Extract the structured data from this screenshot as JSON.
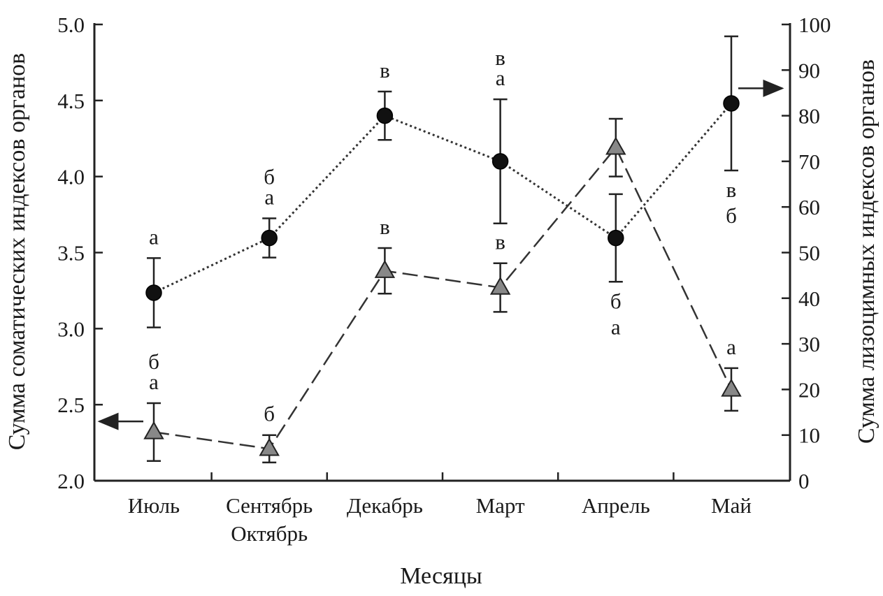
{
  "chart_data": {
    "type": "line",
    "xlabel": "Месяцы",
    "ylabel_left": "Сумма соматических индексов органов",
    "ylabel_right": "Сумма лизоцимных индексов органов",
    "categories": [
      [
        "Июль"
      ],
      [
        "Сентябрь",
        "Октябрь"
      ],
      [
        "Декабрь"
      ],
      [
        "Март"
      ],
      [
        "Апрель"
      ],
      [
        "Май"
      ]
    ],
    "ylim_left": [
      2.0,
      5.0
    ],
    "yticks_left": [
      2.0,
      2.5,
      3.0,
      3.5,
      4.0,
      4.5,
      5.0
    ],
    "ytick_labels_left": [
      "2.0",
      "2.5",
      "3.0",
      "3.5",
      "4.0",
      "4.5",
      "5.0"
    ],
    "ylim_right": [
      0,
      100
    ],
    "yticks_right": [
      0,
      10,
      20,
      30,
      40,
      50,
      60,
      70,
      80,
      90,
      100
    ],
    "ytick_labels_right": [
      "0",
      "10",
      "20",
      "30",
      "40",
      "50",
      "60",
      "70",
      "80",
      "90",
      "100"
    ],
    "grid": false,
    "series": [
      {
        "axis": "left",
        "marker": "triangle",
        "line_style": "dashed",
        "color": "#888888",
        "values": [
          2.32,
          2.21,
          3.38,
          3.27,
          4.19,
          2.6
        ],
        "errors": [
          0.19,
          0.09,
          0.15,
          0.16,
          0.19,
          0.14
        ],
        "annotations": [
          {
            "lines": [
              "б",
              "а"
            ],
            "position": "above"
          },
          {
            "lines": [
              "б"
            ],
            "position": "above"
          },
          {
            "lines": [
              "в"
            ],
            "position": "above"
          },
          {
            "lines": [
              "в"
            ],
            "position": "above"
          },
          {
            "lines": [],
            "position": "above"
          },
          {
            "lines": [
              "а"
            ],
            "position": "above"
          }
        ],
        "arrow": "left"
      },
      {
        "axis": "right",
        "marker": "circle",
        "line_style": "dotted",
        "color": "#111111",
        "values": [
          41.2,
          53.2,
          80.0,
          70.0,
          53.2,
          82.7
        ],
        "errors": [
          7.6,
          4.3,
          5.3,
          13.6,
          9.6,
          14.7
        ],
        "annotations": [
          {
            "lines": [
              "а"
            ],
            "position": "above"
          },
          {
            "lines": [
              "б",
              "а"
            ],
            "position": "above"
          },
          {
            "lines": [
              "в"
            ],
            "position": "above"
          },
          {
            "lines": [
              "в",
              "а"
            ],
            "position": "above"
          },
          {
            "lines": [
              "б",
              "а"
            ],
            "position": "below"
          },
          {
            "lines": [
              "в",
              "б"
            ],
            "position": "below"
          }
        ],
        "arrow": "right"
      }
    ]
  }
}
